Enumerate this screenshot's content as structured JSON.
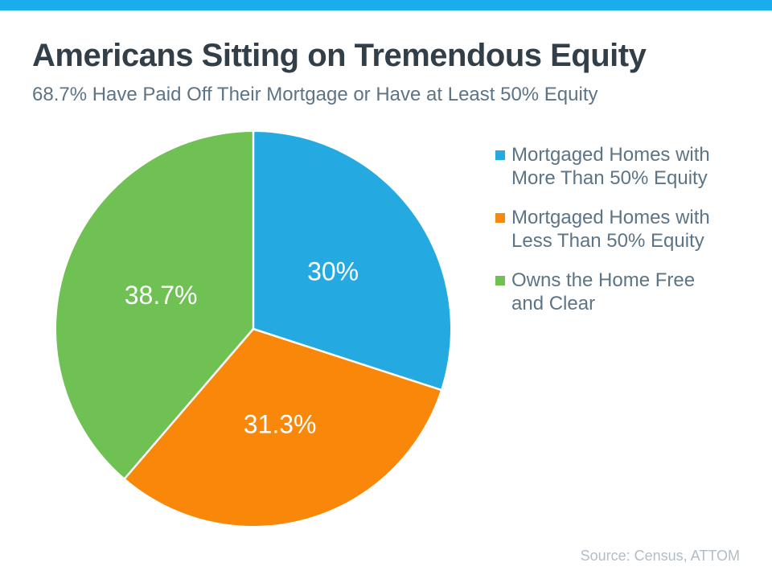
{
  "header": {
    "title": "Americans Sitting on Tremendous Equity",
    "subtitle": "68.7% Have Paid Off Their Mortgage or Have at Least 50% Equity"
  },
  "footer": {
    "source": "Source: Census, ATTOM"
  },
  "colors": {
    "top_bar": "#1AACEC",
    "title_text": "#333F48",
    "subtitle_text": "#5C7486",
    "legend_text": "#5C7486",
    "source_text": "#B2BDC6",
    "slice_blue": "#24A9E1",
    "slice_orange": "#F8870A",
    "slice_green": "#6EC152",
    "slice_label_text": "#FFFFFF",
    "slice_separator": "#FFFFFF"
  },
  "legend": {
    "items": [
      {
        "label": "Mortgaged Homes with\nMore Than 50% Equity",
        "color": "#24A9E1"
      },
      {
        "label": "Mortgaged Homes with\nLess Than 50% Equity",
        "color": "#F8870A"
      },
      {
        "label": "Owns the Home Free\nand Clear",
        "color": "#6EC152"
      }
    ]
  },
  "chart_data": {
    "type": "pie",
    "title": "Americans Sitting on Tremendous Equity",
    "subtitle": "68.7% Have Paid Off Their Mortgage or Have at Least 50% Equity",
    "start_angle_deg": 0,
    "direction": "clockwise",
    "legend_position": "right",
    "label_radius_ratio": 0.5,
    "slices": [
      {
        "label": "Mortgaged Homes with More Than 50% Equity",
        "value": 30,
        "display": "30%",
        "color": "#24A9E1"
      },
      {
        "label": "Mortgaged Homes with Less Than 50% Equity",
        "value": 31.3,
        "display": "31.3%",
        "color": "#F8870A"
      },
      {
        "label": "Owns the Home Free and Clear",
        "value": 38.7,
        "display": "38.7%",
        "color": "#6EC152"
      }
    ],
    "source": "Source: Census, ATTOM"
  }
}
